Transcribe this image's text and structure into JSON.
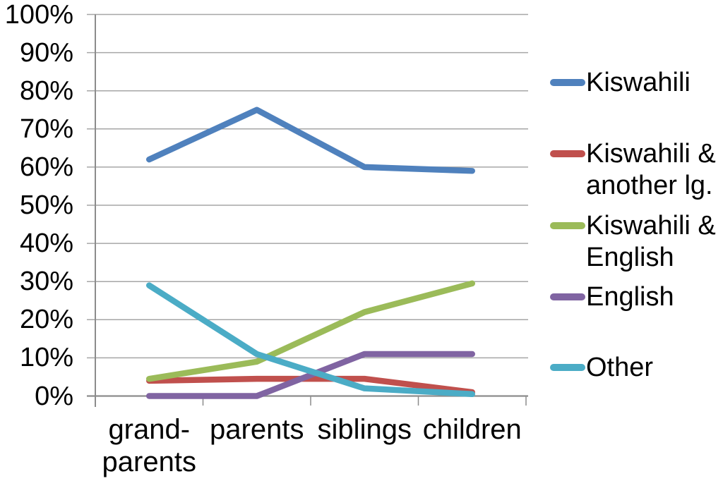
{
  "chart_data": {
    "type": "line",
    "title": "",
    "categories": [
      "grand-\nparents",
      "parents",
      "siblings",
      "children"
    ],
    "y_ticks": [
      "100%",
      "90%",
      "80%",
      "70%",
      "60%",
      "50%",
      "40%",
      "30%",
      "20%",
      "10%",
      "0%"
    ],
    "ylim": [
      0,
      100
    ],
    "y_unit": "%",
    "grid": true,
    "legend_position": "right",
    "series": [
      {
        "name": "Kiswahili",
        "color": "#4F81BD",
        "values": [
          62,
          75,
          60,
          59
        ]
      },
      {
        "name": "Kiswahili &\nanother lg.",
        "color": "#C0504D",
        "values": [
          4,
          4.5,
          4.5,
          1
        ]
      },
      {
        "name": "Kiswahili &\nEnglish",
        "color": "#9BBB59",
        "values": [
          4.5,
          9,
          22,
          29.5
        ]
      },
      {
        "name": "English",
        "color": "#8064A2",
        "values": [
          0,
          0,
          11,
          11
        ]
      },
      {
        "name": "Other",
        "color": "#4BACC6",
        "values": [
          29,
          11,
          2,
          0.5
        ]
      }
    ]
  },
  "style": {
    "background": "#FFFFFF",
    "text_color": "#000000",
    "grid_color": "#A6A6A6",
    "axis_color": "#8C8C8C"
  }
}
